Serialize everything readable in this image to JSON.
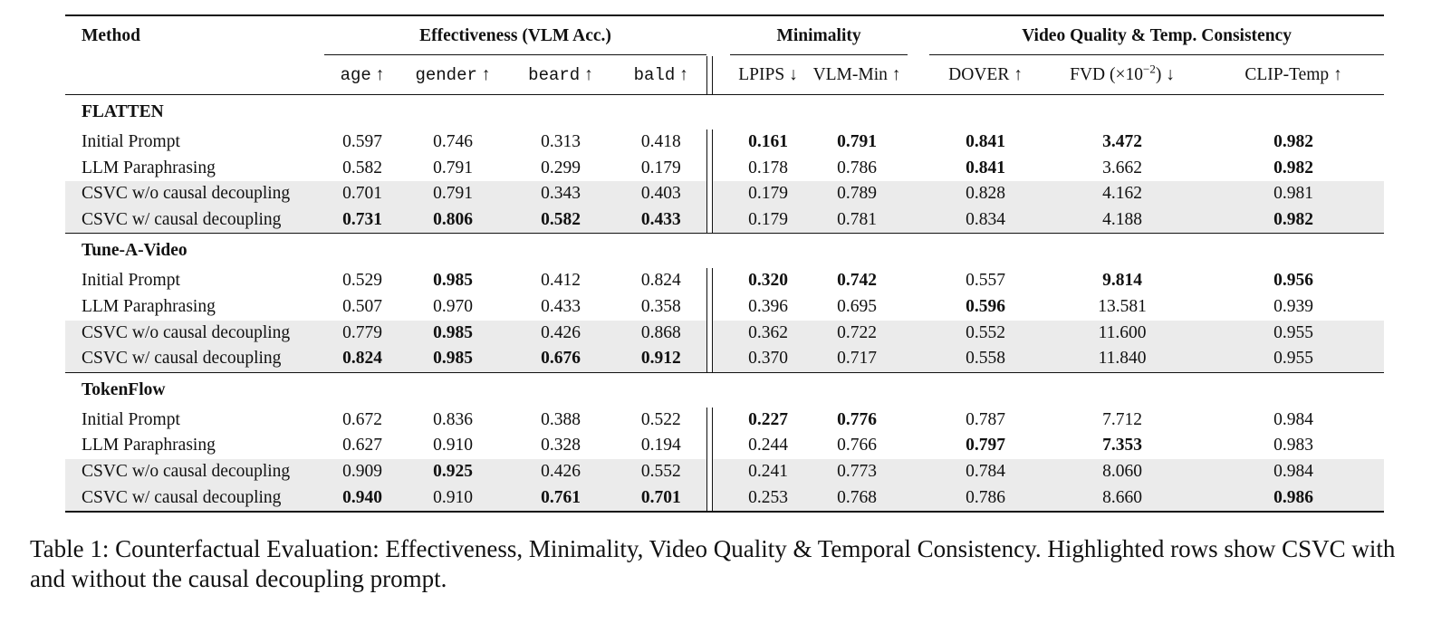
{
  "table": {
    "header": {
      "method": "Method",
      "group_effectiveness": "Effectiveness (VLM Acc.)",
      "group_minimality": "Minimality",
      "group_quality": "Video Quality & Temp. Consistency",
      "cols": {
        "age": "age",
        "gender": "gender",
        "beard": "beard",
        "bald": "bald",
        "lpips": "LPIPS",
        "vlm_min": "VLM-Min",
        "dover": "DOVER",
        "fvd": "FVD (×10",
        "fvd_exp": "−2",
        "fvd_close": ")",
        "clip_temp": "CLIP-Temp"
      },
      "up_arrow": "↑",
      "down_arrow": "↓"
    },
    "sections": [
      {
        "name": "FLATTEN",
        "rows": [
          {
            "label": "Initial Prompt",
            "vals": [
              "0.597",
              "0.746",
              "0.313",
              "0.418",
              "0.161",
              "0.791",
              "0.841",
              "3.472",
              "0.982"
            ],
            "bold": [
              false,
              false,
              false,
              false,
              true,
              true,
              true,
              true,
              true
            ],
            "highlight": false
          },
          {
            "label": "LLM Paraphrasing",
            "vals": [
              "0.582",
              "0.791",
              "0.299",
              "0.179",
              "0.178",
              "0.786",
              "0.841",
              "3.662",
              "0.982"
            ],
            "bold": [
              false,
              false,
              false,
              false,
              false,
              false,
              true,
              false,
              true
            ],
            "highlight": false
          },
          {
            "label": "CSVC w/o causal decoupling",
            "vals": [
              "0.701",
              "0.791",
              "0.343",
              "0.403",
              "0.179",
              "0.789",
              "0.828",
              "4.162",
              "0.981"
            ],
            "bold": [
              false,
              false,
              false,
              false,
              false,
              false,
              false,
              false,
              false
            ],
            "highlight": true
          },
          {
            "label": "CSVC w/ causal decoupling",
            "vals": [
              "0.731",
              "0.806",
              "0.582",
              "0.433",
              "0.179",
              "0.781",
              "0.834",
              "4.188",
              "0.982"
            ],
            "bold": [
              true,
              true,
              true,
              true,
              false,
              false,
              false,
              false,
              true
            ],
            "highlight": true
          }
        ]
      },
      {
        "name": "Tune-A-Video",
        "rows": [
          {
            "label": "Initial Prompt",
            "vals": [
              "0.529",
              "0.985",
              "0.412",
              "0.824",
              "0.320",
              "0.742",
              "0.557",
              "9.814",
              "0.956"
            ],
            "bold": [
              false,
              true,
              false,
              false,
              true,
              true,
              false,
              true,
              true
            ],
            "highlight": false
          },
          {
            "label": "LLM Paraphrasing",
            "vals": [
              "0.507",
              "0.970",
              "0.433",
              "0.358",
              "0.396",
              "0.695",
              "0.596",
              "13.581",
              "0.939"
            ],
            "bold": [
              false,
              false,
              false,
              false,
              false,
              false,
              true,
              false,
              false
            ],
            "highlight": false
          },
          {
            "label": "CSVC w/o causal decoupling",
            "vals": [
              "0.779",
              "0.985",
              "0.426",
              "0.868",
              "0.362",
              "0.722",
              "0.552",
              "11.600",
              "0.955"
            ],
            "bold": [
              false,
              true,
              false,
              false,
              false,
              false,
              false,
              false,
              false
            ],
            "highlight": true
          },
          {
            "label": "CSVC w/ causal decoupling",
            "vals": [
              "0.824",
              "0.985",
              "0.676",
              "0.912",
              "0.370",
              "0.717",
              "0.558",
              "11.840",
              "0.955"
            ],
            "bold": [
              true,
              true,
              true,
              true,
              false,
              false,
              false,
              false,
              false
            ],
            "highlight": true
          }
        ]
      },
      {
        "name": "TokenFlow",
        "rows": [
          {
            "label": "Initial Prompt",
            "vals": [
              "0.672",
              "0.836",
              "0.388",
              "0.522",
              "0.227",
              "0.776",
              "0.787",
              "7.712",
              "0.984"
            ],
            "bold": [
              false,
              false,
              false,
              false,
              true,
              true,
              false,
              false,
              false
            ],
            "highlight": false
          },
          {
            "label": "LLM Paraphrasing",
            "vals": [
              "0.627",
              "0.910",
              "0.328",
              "0.194",
              "0.244",
              "0.766",
              "0.797",
              "7.353",
              "0.983"
            ],
            "bold": [
              false,
              false,
              false,
              false,
              false,
              false,
              true,
              true,
              false
            ],
            "highlight": false
          },
          {
            "label": "CSVC w/o causal decoupling",
            "vals": [
              "0.909",
              "0.925",
              "0.426",
              "0.552",
              "0.241",
              "0.773",
              "0.784",
              "8.060",
              "0.984"
            ],
            "bold": [
              false,
              true,
              false,
              false,
              false,
              false,
              false,
              false,
              false
            ],
            "highlight": true
          },
          {
            "label": "CSVC w/ causal decoupling",
            "vals": [
              "0.940",
              "0.910",
              "0.761",
              "0.701",
              "0.253",
              "0.768",
              "0.786",
              "8.660",
              "0.986"
            ],
            "bold": [
              true,
              false,
              true,
              true,
              false,
              false,
              false,
              false,
              true
            ],
            "highlight": true
          }
        ]
      }
    ],
    "highlight_color": "#ebebeb"
  },
  "caption": "Table 1: Counterfactual Evaluation: Effectiveness, Minimality, Video Quality & Temporal Consistency. Highlighted rows show CSVC with and without the causal decoupling prompt."
}
